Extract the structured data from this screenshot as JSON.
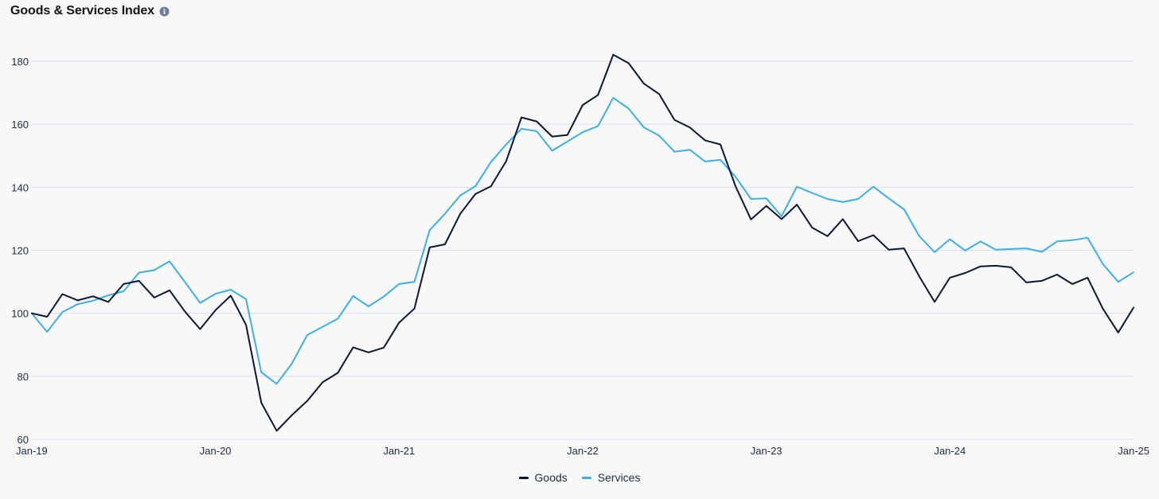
{
  "header": {
    "title": "Goods & Services Index",
    "info_icon": "info-icon"
  },
  "colors": {
    "goods": "#0c1734",
    "services": "#3ab0ea",
    "grid": "#dcdcf0",
    "tick": "#1f2a44"
  },
  "chart_data": {
    "type": "line",
    "title": "Goods & Services Index",
    "xlabel": "",
    "ylabel": "",
    "ylim": [
      60,
      185
    ],
    "yticks": [
      "60",
      "80",
      "100",
      "120",
      "140",
      "160",
      "180"
    ],
    "xticks": [
      "Jan-19",
      "Jan-20",
      "Jan-21",
      "Jan-22",
      "Jan-23",
      "Jan-24",
      "Jan-25"
    ],
    "grid": true,
    "legend": "bottom-center",
    "series": [
      {
        "name": "Goods",
        "values": [
          100,
          98.9,
          106.1,
          104.1,
          105.4,
          103.6,
          109.3,
          110.3,
          105.0,
          107.3,
          100.6,
          95.0,
          101.0,
          105.6,
          96.3,
          71.6,
          62.7,
          67.7,
          72.2,
          78.1,
          81.1,
          89.2,
          87.6,
          89.1,
          97.0,
          101.5,
          120.9,
          121.9,
          131.6,
          137.9,
          140.3,
          148.3,
          162.2,
          160.9,
          156.1,
          156.6,
          166.1,
          169.3,
          182.1,
          179.4,
          172.9,
          169.6,
          161.4,
          159.0,
          154.9,
          153.6,
          140.2,
          129.8,
          134.1,
          129.9,
          134.5,
          127.2,
          124.5,
          129.9,
          122.9,
          124.8,
          120.2,
          120.6,
          111.7,
          103.6,
          111.3,
          112.8,
          114.9,
          115.1,
          114.6,
          109.8,
          110.3,
          112.3,
          109.3,
          111.3,
          101.4,
          93.9,
          101.8
        ]
      },
      {
        "name": "Services",
        "values": [
          100,
          94.1,
          100.4,
          102.9,
          104.0,
          105.7,
          107.0,
          112.9,
          113.7,
          116.5,
          110.0,
          103.3,
          106.2,
          107.5,
          104.5,
          81.3,
          77.6,
          84.1,
          93.1,
          95.7,
          98.3,
          105.5,
          102.2,
          105.3,
          109.3,
          110.0,
          126.4,
          131.6,
          137.4,
          140.4,
          148.0,
          153.6,
          158.6,
          157.8,
          151.6,
          154.5,
          157.5,
          159.4,
          168.4,
          165.0,
          159.0,
          156.4,
          151.3,
          151.9,
          148.2,
          148.7,
          143.3,
          136.3,
          136.5,
          130.8,
          140.2,
          138.2,
          136.3,
          135.3,
          136.3,
          140.2,
          136.5,
          133.0,
          124.5,
          119.4,
          123.5,
          119.9,
          122.8,
          120.2,
          120.4,
          120.6,
          119.5,
          122.8,
          123.2,
          124.0,
          115.6,
          110.0,
          113.0
        ]
      }
    ]
  }
}
